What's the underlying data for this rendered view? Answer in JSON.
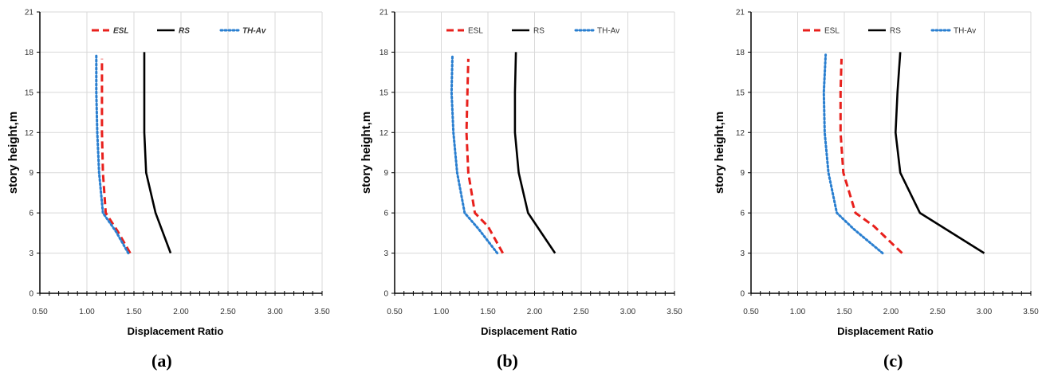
{
  "chart_data": [
    {
      "type": "line",
      "panel_label": "(a)",
      "xlabel": "Displacement Ratio",
      "ylabel": "story height,m",
      "xlim": [
        0.5,
        3.5
      ],
      "ylim": [
        0,
        21
      ],
      "xticks": [
        "0.50",
        "1.00",
        "1.50",
        "2.00",
        "2.50",
        "3.00",
        "3.50"
      ],
      "yticks": [
        "0",
        "3",
        "6",
        "9",
        "12",
        "15",
        "18",
        "21"
      ],
      "legend_italic": true,
      "grid": true,
      "legend_position": "top",
      "series": [
        {
          "name": "ESL",
          "color": "#e8201c",
          "dash": "dashed",
          "points": [
            [
              1.46,
              3
            ],
            [
              1.33,
              4.6
            ],
            [
              1.2,
              6
            ],
            [
              1.17,
              9
            ],
            [
              1.16,
              12
            ],
            [
              1.16,
              15
            ],
            [
              1.16,
              17.5
            ]
          ]
        },
        {
          "name": "RS",
          "color": "#000000",
          "dash": "solid",
          "points": [
            [
              1.89,
              3
            ],
            [
              1.73,
              6
            ],
            [
              1.63,
              9
            ],
            [
              1.61,
              12
            ],
            [
              1.61,
              15
            ],
            [
              1.61,
              18
            ]
          ]
        },
        {
          "name": "TH-Av",
          "color": "#2a7fd0",
          "dash": "dotted",
          "points": [
            [
              1.44,
              3
            ],
            [
              1.31,
              4.6
            ],
            [
              1.17,
              6
            ],
            [
              1.13,
              9
            ],
            [
              1.11,
              12
            ],
            [
              1.1,
              15
            ],
            [
              1.1,
              17.8
            ]
          ]
        }
      ]
    },
    {
      "type": "line",
      "panel_label": "(b)",
      "xlabel": "Displacement Ratio",
      "ylabel": "story height,m",
      "xlim": [
        0.5,
        3.5
      ],
      "ylim": [
        0,
        21
      ],
      "xticks": [
        "0.50",
        "1.00",
        "1.50",
        "2.00",
        "2.50",
        "3.00",
        "3.50"
      ],
      "yticks": [
        "0",
        "3",
        "6",
        "9",
        "12",
        "15",
        "18",
        "21"
      ],
      "legend_italic": false,
      "grid": true,
      "legend_position": "top",
      "series": [
        {
          "name": "ESL",
          "color": "#e8201c",
          "dash": "dashed",
          "points": [
            [
              1.66,
              3
            ],
            [
              1.5,
              5
            ],
            [
              1.36,
              6
            ],
            [
              1.29,
              9
            ],
            [
              1.27,
              12
            ],
            [
              1.28,
              15
            ],
            [
              1.29,
              17.5
            ]
          ]
        },
        {
          "name": "RS",
          "color": "#000000",
          "dash": "solid",
          "points": [
            [
              2.22,
              3
            ],
            [
              1.93,
              6
            ],
            [
              1.83,
              9
            ],
            [
              1.79,
              12
            ],
            [
              1.79,
              15
            ],
            [
              1.8,
              18
            ]
          ]
        },
        {
          "name": "TH-Av",
          "color": "#2a7fd0",
          "dash": "dotted",
          "points": [
            [
              1.6,
              3
            ],
            [
              1.4,
              4.8
            ],
            [
              1.25,
              6
            ],
            [
              1.17,
              9
            ],
            [
              1.13,
              12
            ],
            [
              1.11,
              15
            ],
            [
              1.12,
              17.8
            ]
          ]
        }
      ]
    },
    {
      "type": "line",
      "panel_label": "(c)",
      "xlabel": "Displacement Ratio",
      "ylabel": "story height,m",
      "xlim": [
        0.5,
        3.5
      ],
      "ylim": [
        0,
        21
      ],
      "xticks": [
        "0.50",
        "1.00",
        "1.50",
        "2.00",
        "2.50",
        "3.00",
        "3.50"
      ],
      "yticks": [
        "0",
        "3",
        "6",
        "9",
        "12",
        "15",
        "18",
        "21"
      ],
      "legend_italic": false,
      "grid": true,
      "legend_position": "top",
      "series": [
        {
          "name": "ESL",
          "color": "#e8201c",
          "dash": "dashed",
          "points": [
            [
              2.12,
              3
            ],
            [
              1.82,
              5
            ],
            [
              1.62,
              6
            ],
            [
              1.49,
              9
            ],
            [
              1.46,
              12
            ],
            [
              1.46,
              15
            ],
            [
              1.47,
              17.5
            ]
          ]
        },
        {
          "name": "RS",
          "color": "#000000",
          "dash": "solid",
          "points": [
            [
              3.0,
              3
            ],
            [
              2.31,
              6
            ],
            [
              2.1,
              9
            ],
            [
              2.05,
              12
            ],
            [
              2.07,
              15
            ],
            [
              2.1,
              18
            ]
          ]
        },
        {
          "name": "TH-Av",
          "color": "#2a7fd0",
          "dash": "dotted",
          "points": [
            [
              1.91,
              3
            ],
            [
              1.6,
              4.8
            ],
            [
              1.42,
              6
            ],
            [
              1.33,
              9
            ],
            [
              1.29,
              12
            ],
            [
              1.28,
              15
            ],
            [
              1.3,
              17.8
            ]
          ]
        }
      ]
    }
  ]
}
